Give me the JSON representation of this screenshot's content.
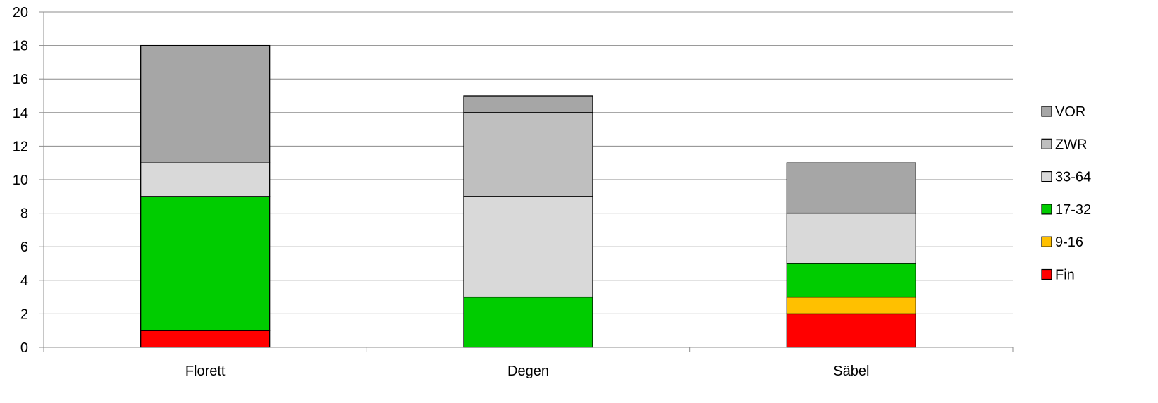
{
  "chart_data": {
    "type": "bar",
    "stacked": true,
    "categories": [
      "Florett",
      "Degen",
      "Säbel"
    ],
    "series": [
      {
        "name": "Fin",
        "color": "#ff0000",
        "values": [
          1,
          0,
          2
        ]
      },
      {
        "name": "9-16",
        "color": "#ffc000",
        "values": [
          0,
          0,
          1
        ]
      },
      {
        "name": "17-32",
        "color": "#00cc00",
        "values": [
          8,
          3,
          2
        ]
      },
      {
        "name": "33-64",
        "color": "#d9d9d9",
        "values": [
          2,
          6,
          3
        ]
      },
      {
        "name": "ZWR",
        "color": "#bfbfbf",
        "values": [
          0,
          5,
          0
        ]
      },
      {
        "name": "VOR",
        "color": "#a6a6a6",
        "values": [
          7,
          1,
          3
        ]
      }
    ],
    "ylim": [
      0,
      20
    ],
    "yticks": [
      0,
      2,
      4,
      6,
      8,
      10,
      12,
      14,
      16,
      18,
      20
    ],
    "grid": true,
    "legend_position": "right",
    "legend_order": [
      "VOR",
      "ZWR",
      "33-64",
      "17-32",
      "9-16",
      "Fin"
    ],
    "title": "",
    "xlabel": "",
    "ylabel": ""
  }
}
